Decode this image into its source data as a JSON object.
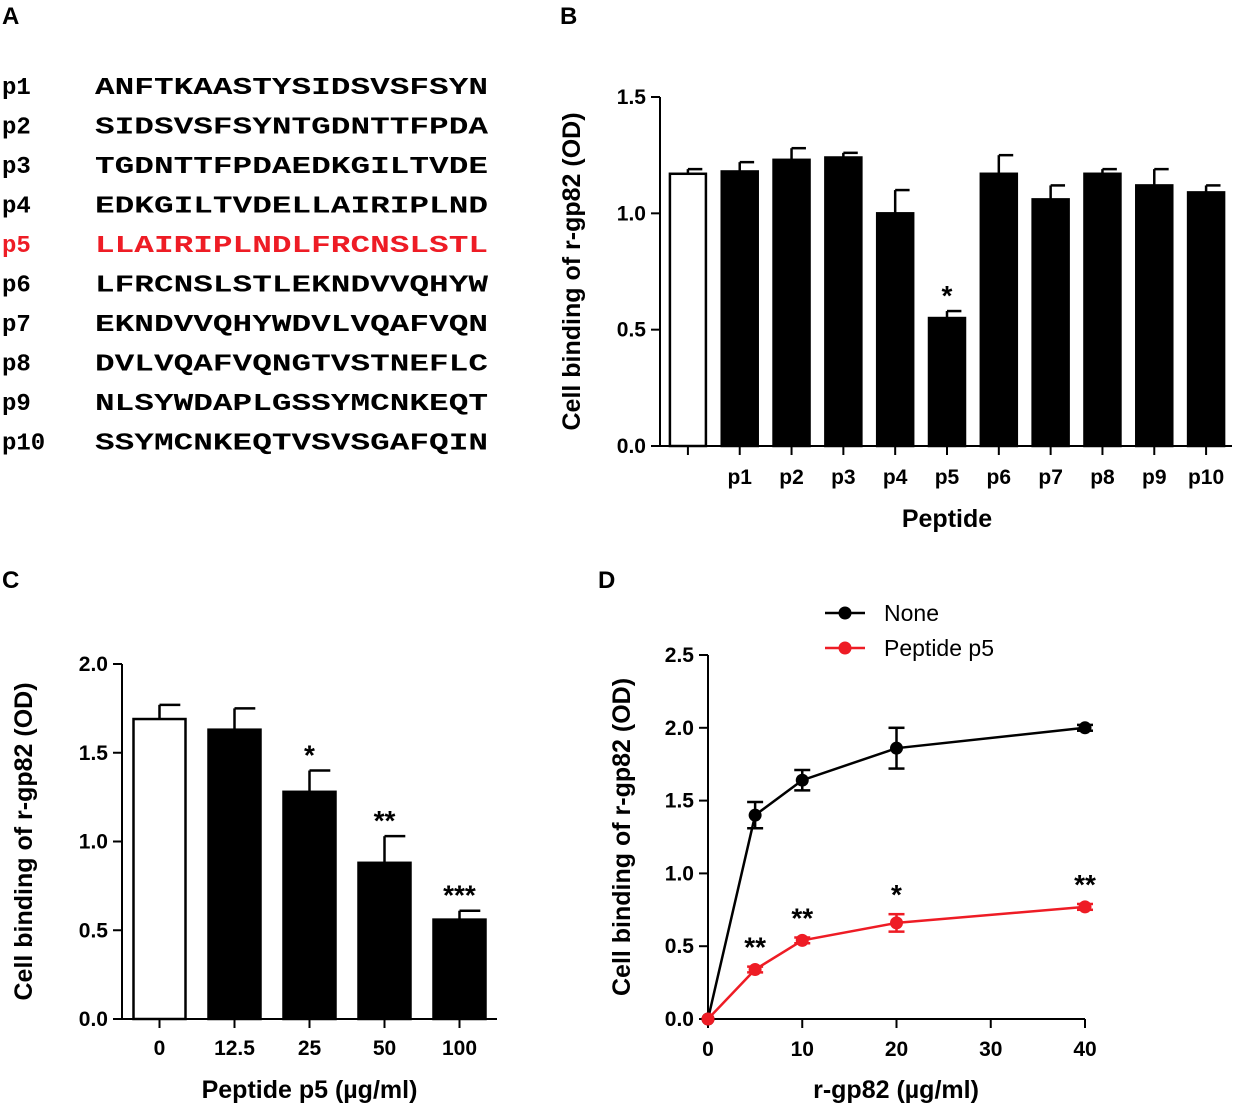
{
  "panel_a": {
    "letter": "A",
    "peptides": [
      {
        "id": "p1",
        "sequence": "ANFTKAASTYSIDSVSFSYN"
      },
      {
        "id": "p2",
        "sequence": "SIDSVSFSYNTGDNTTFPDA"
      },
      {
        "id": "p3",
        "sequence": "TGDNTTFPDAEDKGILTVDE"
      },
      {
        "id": "p4",
        "sequence": "EDKGILTVDELLAIRIPLND"
      },
      {
        "id": "p5",
        "sequence": "LLAIRIPLNDLFRCNSLSTL",
        "highlight": true
      },
      {
        "id": "p6",
        "sequence": "LFRCNSLSTLEKNDVVQHYW"
      },
      {
        "id": "p7",
        "sequence": "EKNDVVQHYWDVLVQAFVQN"
      },
      {
        "id": "p8",
        "sequence": "DVLVQAFVQNGTVSTNEFLC"
      },
      {
        "id": "p9",
        "sequence": "NLSYWDAPLGSSYMCNKEQT"
      },
      {
        "id": "p10",
        "sequence": "SSYMCNKEQTVSVSGAFQIN"
      }
    ],
    "highlight_color": "#ee1c25",
    "text_color": "#000000"
  },
  "chart_data": [
    {
      "panel": "B",
      "type": "bar",
      "xlabel": "Peptide",
      "ylabel": "Cell binding of r-gp82 (OD)",
      "ylim": [
        0,
        1.5
      ],
      "yticks": [
        "0.0",
        "0.5",
        "1.0",
        "1.5"
      ],
      "categories": [
        "",
        "p1",
        "p2",
        "p3",
        "p4",
        "p5",
        "p6",
        "p7",
        "p8",
        "p9",
        "p10"
      ],
      "values": [
        1.17,
        1.18,
        1.23,
        1.24,
        1.0,
        0.55,
        1.17,
        1.06,
        1.17,
        1.12,
        1.09
      ],
      "errors": [
        0.02,
        0.04,
        0.05,
        0.02,
        0.1,
        0.03,
        0.08,
        0.06,
        0.02,
        0.07,
        0.03
      ],
      "fill": [
        "white",
        "black",
        "black",
        "black",
        "black",
        "black",
        "black",
        "black",
        "black",
        "black",
        "black"
      ],
      "annotations": [
        "",
        "",
        "",
        "",
        "",
        "*",
        "",
        "",
        "",
        "",
        ""
      ]
    },
    {
      "panel": "C",
      "type": "bar",
      "xlabel": "Peptide p5 (µg/ml)",
      "ylabel": "Cell binding of r-gp82 (OD)",
      "ylim": [
        0,
        2.0
      ],
      "yticks": [
        "0.0",
        "0.5",
        "1.0",
        "1.5",
        "2.0"
      ],
      "categories": [
        "0",
        "12.5",
        "25",
        "50",
        "100"
      ],
      "values": [
        1.69,
        1.63,
        1.28,
        0.88,
        0.56
      ],
      "errors": [
        0.08,
        0.12,
        0.12,
        0.15,
        0.05
      ],
      "fill": [
        "white",
        "black",
        "black",
        "black",
        "black"
      ],
      "annotations": [
        "",
        "",
        "*",
        "**",
        "***"
      ]
    },
    {
      "panel": "D",
      "type": "line",
      "xlabel": "r-gp82 (µg/ml)",
      "ylabel": "Cell binding of r-gp82 (OD)",
      "xlim": [
        0,
        40
      ],
      "ylim": [
        0,
        2.5
      ],
      "xticks": [
        "0",
        "10",
        "20",
        "30",
        "40"
      ],
      "yticks": [
        "0.0",
        "0.5",
        "1.0",
        "1.5",
        "2.0",
        "2.5"
      ],
      "x": [
        0,
        5,
        10,
        20,
        40
      ],
      "legend_position": "top",
      "series": [
        {
          "name": "None",
          "color": "#000000",
          "values": [
            0.0,
            1.4,
            1.64,
            1.86,
            2.0
          ],
          "errors": [
            0,
            0.09,
            0.07,
            0.14,
            0.02
          ],
          "annotations": [
            "",
            "",
            "",
            "",
            ""
          ]
        },
        {
          "name": "Peptide p5",
          "color": "#ee1c25",
          "values": [
            0.0,
            0.34,
            0.54,
            0.66,
            0.77
          ],
          "errors": [
            0,
            0.02,
            0.02,
            0.06,
            0.02
          ],
          "annotations": [
            "",
            "**",
            "**",
            "*",
            "**"
          ]
        }
      ]
    }
  ],
  "panel_letters": {
    "b": "B",
    "c": "C",
    "d": "D"
  }
}
